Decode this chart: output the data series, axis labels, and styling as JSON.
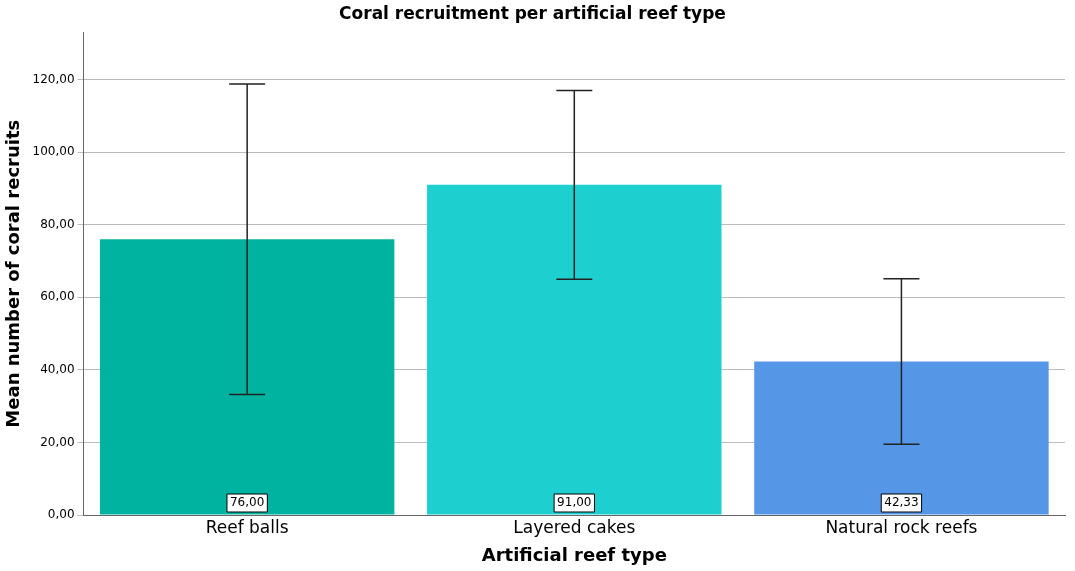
{
  "chart_data": {
    "type": "bar",
    "title": "Coral recruitment per artificial reef type",
    "xlabel": "Artificial reef type",
    "ylabel": "Mean number of coral recruits",
    "categories": [
      "Reef balls",
      "Layered cakes",
      "Natural rock reefs"
    ],
    "values": [
      76,
      91,
      42.33
    ],
    "colors": [
      "#00b3a1",
      "#1ecfcf",
      "#5596e6"
    ],
    "errors": [
      42.8,
      26,
      22.8
    ],
    "value_labels": [
      "76,00",
      "91,00",
      "42,33"
    ],
    "ylim": [
      0,
      133
    ],
    "yticks": [
      {
        "value": 0,
        "label": "0,00"
      },
      {
        "value": 20,
        "label": "20,00"
      },
      {
        "value": 40,
        "label": "40,00"
      },
      {
        "value": 60,
        "label": "60,00"
      },
      {
        "value": 80,
        "label": "80,00"
      },
      {
        "value": 100,
        "label": "100,00"
      },
      {
        "value": 120,
        "label": "120,00"
      }
    ],
    "grid": "y",
    "legend": false
  }
}
